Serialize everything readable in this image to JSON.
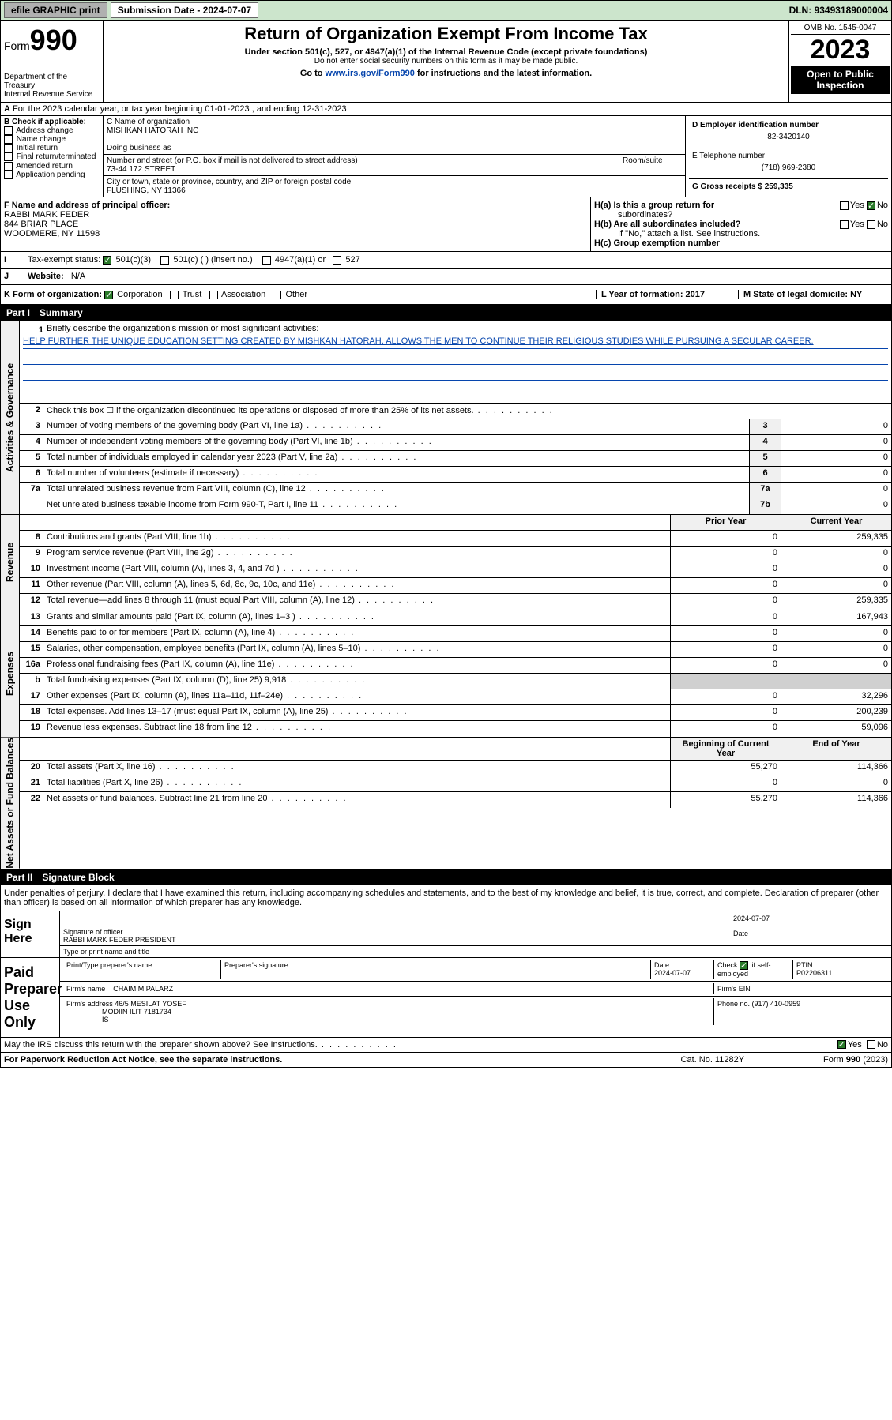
{
  "topbar": {
    "efile": "efile GRAPHIC print",
    "submission_label": "Submission Date - 2024-07-07",
    "dln": "DLN: 93493189000004"
  },
  "header": {
    "form_label": "Form",
    "form_num": "990",
    "title": "Return of Organization Exempt From Income Tax",
    "sub1": "Under section 501(c), 527, or 4947(a)(1) of the Internal Revenue Code (except private foundations)",
    "sub2": "Do not enter social security numbers on this form as it may be made public.",
    "sub3_a": "Go to ",
    "sub3_link": "www.irs.gov/Form990",
    "sub3_b": " for instructions and the latest information.",
    "omb": "OMB No. 1545-0047",
    "year": "2023",
    "open": "Open to Public Inspection",
    "dept1": "Department of the Treasury",
    "dept2": "Internal Revenue Service"
  },
  "line_a": "For the 2023 calendar year, or tax year beginning 01-01-2023   , and ending 12-31-2023",
  "col_b": {
    "label": "B Check if applicable:",
    "opts": [
      "Address change",
      "Name change",
      "Initial return",
      "Final return/terminated",
      "Amended return",
      "Application pending"
    ]
  },
  "col_c": {
    "name_label": "C Name of organization",
    "name": "MISHKAN HATORAH INC",
    "dba_label": "Doing business as",
    "addr_label": "Number and street (or P.O. box if mail is not delivered to street address)",
    "room_label": "Room/suite",
    "addr": "73-44 172 STREET",
    "city_label": "City or town, state or province, country, and ZIP or foreign postal code",
    "city": "FLUSHING, NY  11366"
  },
  "col_de": {
    "d_label": "D Employer identification number",
    "d_val": "82-3420140",
    "e_label": "E Telephone number",
    "e_val": "(718) 969-2380",
    "g_label": "G Gross receipts $ 259,335"
  },
  "row_f": {
    "f_label": "F  Name and address of principal officer:",
    "f_name": "RABBI MARK FEDER",
    "f_addr1": "844 BRIAR PLACE",
    "f_addr2": "WOODMERE, NY  11598",
    "ha_label": "H(a)  Is this a group return for",
    "ha_sub": "subordinates?",
    "hb_label": "H(b)  Are all subordinates included?",
    "hb_note": "If \"No,\" attach a list. See instructions.",
    "hc_label": "H(c)  Group exemption number",
    "yes": "Yes",
    "no": "No"
  },
  "row_i": {
    "label": "Tax-exempt status:",
    "opt1": "501(c)(3)",
    "opt2": "501(c) (  ) (insert no.)",
    "opt3": "4947(a)(1) or",
    "opt4": "527"
  },
  "row_j": {
    "label": "Website:",
    "val": "N/A"
  },
  "row_k": {
    "label": "K Form of organization:",
    "opts": [
      "Corporation",
      "Trust",
      "Association",
      "Other"
    ],
    "l_label": "L Year of formation: 2017",
    "m_label": "M State of legal domicile: NY"
  },
  "part1": {
    "num": "Part I",
    "title": "Summary"
  },
  "mission": {
    "label": "Briefly describe the organization's mission or most significant activities:",
    "text": "HELP FURTHER THE UNIQUE EDUCATION SETTING CREATED BY MISHKAN HATORAH. ALLOWS THE MEN TO CONTINUE THEIR RELIGIOUS STUDIES WHILE PURSUING A SECULAR CAREER."
  },
  "gov_rows": [
    {
      "n": "2",
      "t": "Check this box  ☐  if the organization discontinued its operations or disposed of more than 25% of its net assets."
    },
    {
      "n": "3",
      "t": "Number of voting members of the governing body (Part VI, line 1a)",
      "c": "3",
      "v": "0"
    },
    {
      "n": "4",
      "t": "Number of independent voting members of the governing body (Part VI, line 1b)",
      "c": "4",
      "v": "0"
    },
    {
      "n": "5",
      "t": "Total number of individuals employed in calendar year 2023 (Part V, line 2a)",
      "c": "5",
      "v": "0"
    },
    {
      "n": "6",
      "t": "Total number of volunteers (estimate if necessary)",
      "c": "6",
      "v": "0"
    },
    {
      "n": "7a",
      "t": "Total unrelated business revenue from Part VIII, column (C), line 12",
      "c": "7a",
      "v": "0"
    },
    {
      "n": "",
      "t": "Net unrelated business taxable income from Form 990-T, Part I, line 11",
      "c": "7b",
      "v": "0"
    }
  ],
  "rev_header": {
    "py": "Prior Year",
    "cy": "Current Year"
  },
  "rev_rows": [
    {
      "n": "8",
      "t": "Contributions and grants (Part VIII, line 1h)",
      "py": "0",
      "cy": "259,335"
    },
    {
      "n": "9",
      "t": "Program service revenue (Part VIII, line 2g)",
      "py": "0",
      "cy": "0"
    },
    {
      "n": "10",
      "t": "Investment income (Part VIII, column (A), lines 3, 4, and 7d )",
      "py": "0",
      "cy": "0"
    },
    {
      "n": "11",
      "t": "Other revenue (Part VIII, column (A), lines 5, 6d, 8c, 9c, 10c, and 11e)",
      "py": "0",
      "cy": "0"
    },
    {
      "n": "12",
      "t": "Total revenue—add lines 8 through 11 (must equal Part VIII, column (A), line 12)",
      "py": "0",
      "cy": "259,335"
    }
  ],
  "exp_rows": [
    {
      "n": "13",
      "t": "Grants and similar amounts paid (Part IX, column (A), lines 1–3 )",
      "py": "0",
      "cy": "167,943"
    },
    {
      "n": "14",
      "t": "Benefits paid to or for members (Part IX, column (A), line 4)",
      "py": "0",
      "cy": "0"
    },
    {
      "n": "15",
      "t": "Salaries, other compensation, employee benefits (Part IX, column (A), lines 5–10)",
      "py": "0",
      "cy": "0"
    },
    {
      "n": "16a",
      "t": "Professional fundraising fees (Part IX, column (A), line 11e)",
      "py": "0",
      "cy": "0"
    },
    {
      "n": "b",
      "t": "Total fundraising expenses (Part IX, column (D), line 25) 9,918",
      "py": "",
      "cy": "",
      "shaded": true
    },
    {
      "n": "17",
      "t": "Other expenses (Part IX, column (A), lines 11a–11d, 11f–24e)",
      "py": "0",
      "cy": "32,296"
    },
    {
      "n": "18",
      "t": "Total expenses. Add lines 13–17 (must equal Part IX, column (A), line 25)",
      "py": "0",
      "cy": "200,239"
    },
    {
      "n": "19",
      "t": "Revenue less expenses. Subtract line 18 from line 12",
      "py": "0",
      "cy": "59,096"
    }
  ],
  "na_header": {
    "py": "Beginning of Current Year",
    "cy": "End of Year"
  },
  "na_rows": [
    {
      "n": "20",
      "t": "Total assets (Part X, line 16)",
      "py": "55,270",
      "cy": "114,366"
    },
    {
      "n": "21",
      "t": "Total liabilities (Part X, line 26)",
      "py": "0",
      "cy": "0"
    },
    {
      "n": "22",
      "t": "Net assets or fund balances. Subtract line 21 from line 20",
      "py": "55,270",
      "cy": "114,366"
    }
  ],
  "vtabs": {
    "gov": "Activities & Governance",
    "rev": "Revenue",
    "exp": "Expenses",
    "na": "Net Assets or Fund Balances"
  },
  "part2": {
    "num": "Part II",
    "title": "Signature Block"
  },
  "penalties": "Under penalties of perjury, I declare that I have examined this return, including accompanying schedules and statements, and to the best of my knowledge and belief, it is true, correct, and complete. Declaration of preparer (other than officer) is based on all information of which preparer has any knowledge.",
  "sign": {
    "label": "Sign Here",
    "date": "2024-07-07",
    "sig_label": "Signature of officer",
    "name": "RABBI MARK FEDER  PRESIDENT",
    "type_label": "Type or print name and title",
    "date_label": "Date"
  },
  "paid": {
    "label": "Paid Preparer Use Only",
    "h1": "Print/Type preparer's name",
    "h2": "Preparer's signature",
    "h3": "Date",
    "h3v": "2024-07-07",
    "h4a": "Check",
    "h4b": "if self-employed",
    "h5": "PTIN",
    "h5v": "P02206311",
    "firm_label": "Firm's name",
    "firm": "CHAIM M PALARZ",
    "ein_label": "Firm's EIN",
    "addr_label": "Firm's address",
    "addr1": "46/5 MESILAT YOSEF",
    "addr2": "MODIIN ILIT  7181734",
    "addr3": "IS",
    "phone_label": "Phone no. (917) 410-0959"
  },
  "discuss": {
    "text": "May the IRS discuss this return with the preparer shown above? See Instructions.",
    "yes": "Yes",
    "no": "No"
  },
  "footer": {
    "left": "For Paperwork Reduction Act Notice, see the separate instructions.",
    "mid": "Cat. No. 11282Y",
    "right_a": "Form ",
    "right_b": "990",
    "right_c": " (2023)"
  }
}
